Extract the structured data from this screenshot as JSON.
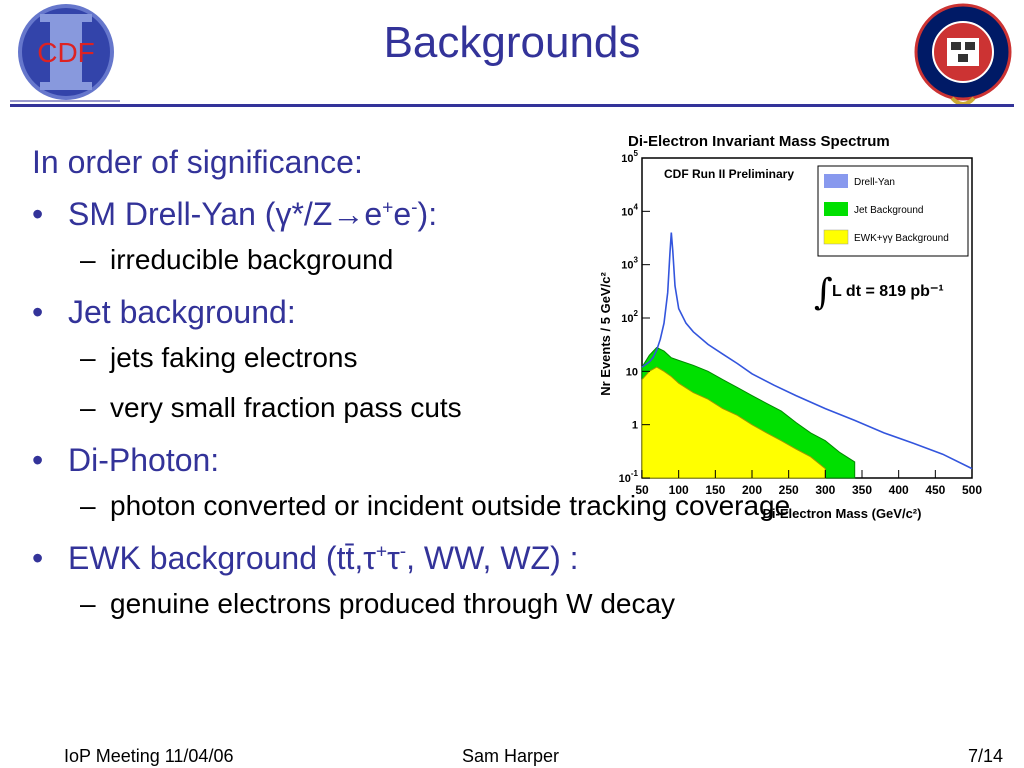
{
  "slide": {
    "title": "Backgrounds",
    "intro": "In order of significance:",
    "items": [
      {
        "text": "SM Drell-Yan (γ*/Z→e",
        "sup1": "+",
        "mid": "e",
        "sup2": "-",
        "tail": "):"
      },
      {
        "sub": "irreducible background"
      },
      {
        "text": "Jet background:"
      },
      {
        "sub": "jets faking electrons"
      },
      {
        "sub": "very small fraction pass cuts"
      },
      {
        "text": "Di-Photon:"
      },
      {
        "sub": "photon converted or incident outside tracking coverage"
      },
      {
        "text": "EWK background (tt̄,τ",
        "sup1": "+",
        "mid": "τ",
        "sup2": "-",
        "tail": ", WW, WZ) :"
      },
      {
        "sub": "genuine electrons produced through W decay"
      }
    ],
    "footer": {
      "left": "IoP Meeting 11/04/06",
      "center": "Sam Harper",
      "right": "7/14"
    },
    "logos": {
      "cdf": "CDF"
    }
  },
  "colors": {
    "accent": "#333399",
    "drell_yan": "#3355dd",
    "jet": "#00e000",
    "ewk": "#ffff00"
  },
  "chart_data": {
    "type": "area",
    "title": "Di-Electron Invariant Mass Spectrum",
    "xlabel": "Di-Electron Mass (GeV/c²)",
    "ylabel": "Nr Events / 5 GeV/c²",
    "annotation": "CDF Run II Preliminary",
    "luminosity": "L dt = 819 pb⁻¹",
    "yscale": "log",
    "xlim": [
      50,
      500
    ],
    "ylim": [
      0.1,
      100000
    ],
    "xticks": [
      "50",
      "100",
      "150",
      "200",
      "250",
      "300",
      "350",
      "400",
      "450",
      "500"
    ],
    "yticks": [
      {
        "base": "10",
        "exp": "5"
      },
      {
        "base": "10",
        "exp": "4"
      },
      {
        "base": "10",
        "exp": "3"
      },
      {
        "base": "10",
        "exp": "2"
      },
      {
        "base": "10",
        "exp": ""
      },
      {
        "base": "1",
        "exp": ""
      },
      {
        "base": "10",
        "exp": "-1"
      }
    ],
    "legend": [
      {
        "name": "Drell-Yan",
        "color": "#8899ee"
      },
      {
        "name": "Jet Background",
        "color": "#00e000"
      },
      {
        "name": "EWK+γγ Background",
        "color": "#ffff00"
      }
    ],
    "series": [
      {
        "name": "Drell-Yan",
        "x": [
          50,
          60,
          65,
          70,
          75,
          80,
          85,
          88,
          90,
          92,
          95,
          100,
          110,
          120,
          140,
          160,
          180,
          200,
          230,
          260,
          300,
          340,
          380,
          420,
          460,
          500
        ],
        "values": [
          12,
          15,
          18,
          25,
          40,
          80,
          300,
          1600,
          4000,
          1800,
          400,
          150,
          80,
          55,
          32,
          21,
          14,
          9,
          5.5,
          3.5,
          2,
          1.2,
          0.7,
          0.45,
          0.28,
          0.15
        ]
      },
      {
        "name": "Jet Background",
        "x": [
          50,
          60,
          70,
          80,
          90,
          100,
          120,
          140,
          160,
          180,
          200,
          220,
          240,
          260,
          280,
          300,
          320,
          340
        ],
        "values": [
          12,
          20,
          28,
          24,
          18,
          16,
          13,
          10,
          7,
          5,
          3.5,
          2.5,
          1.8,
          1.1,
          0.7,
          0.5,
          0.3,
          0.2
        ]
      },
      {
        "name": "EWK+γγ Background",
        "x": [
          50,
          60,
          70,
          80,
          90,
          100,
          120,
          140,
          160,
          180,
          200,
          220,
          240,
          260,
          280,
          300
        ],
        "values": [
          7,
          10,
          12,
          10,
          8,
          6,
          4,
          3,
          2,
          1.5,
          1,
          0.7,
          0.5,
          0.35,
          0.25,
          0.15
        ]
      }
    ]
  }
}
